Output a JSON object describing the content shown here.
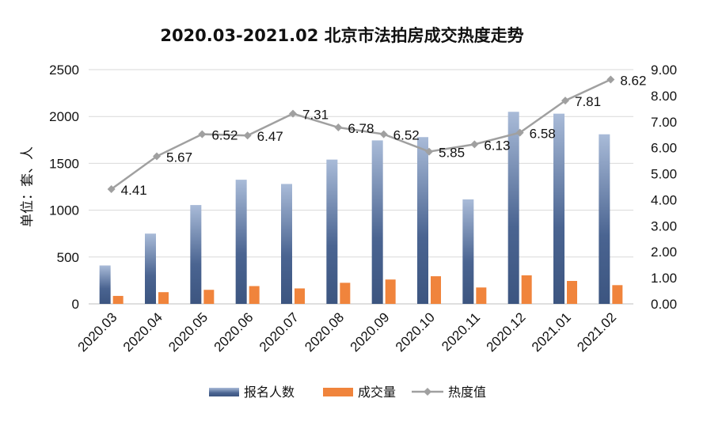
{
  "chart_data": {
    "type": "bar",
    "title": "2020.03-2021.02 北京市法拍房成交热度走势",
    "ylabel": "单位：套、人",
    "categories": [
      "2020.03",
      "2020.04",
      "2020.05",
      "2020.06",
      "2020.07",
      "2020.08",
      "2020.09",
      "2020.10",
      "2020.11",
      "2020.12",
      "2021.01",
      "2021.02"
    ],
    "series": [
      {
        "name": "报名人数",
        "kind": "bar",
        "axis": "left",
        "color": "#4a6491",
        "values": [
          410,
          750,
          1055,
          1325,
          1280,
          1540,
          1745,
          1780,
          1115,
          2050,
          2030,
          1810
        ]
      },
      {
        "name": "成交量",
        "kind": "bar",
        "axis": "left",
        "color": "#f0843c",
        "values": [
          85,
          125,
          150,
          190,
          165,
          225,
          260,
          295,
          175,
          305,
          245,
          200
        ]
      },
      {
        "name": "热度值",
        "kind": "line",
        "axis": "right",
        "color": "#a0a0a0",
        "values": [
          4.41,
          5.67,
          6.52,
          6.47,
          7.31,
          6.78,
          6.52,
          5.85,
          6.13,
          6.58,
          7.81,
          8.62
        ],
        "labels": [
          "4.41",
          "5.67",
          "6.52",
          "6.47",
          "7.31",
          "6.78",
          "6.52",
          "5.85",
          "6.13",
          "6.58",
          "7.81",
          "8.62"
        ]
      }
    ],
    "ylim_left": [
      0,
      2500
    ],
    "yticks_left": [
      "0",
      "500",
      "1000",
      "1500",
      "2000",
      "2500"
    ],
    "ylim_right": [
      0,
      9
    ],
    "yticks_right": [
      "0.00",
      "1.00",
      "2.00",
      "3.00",
      "4.00",
      "5.00",
      "6.00",
      "7.00",
      "8.00",
      "9.00"
    ],
    "grid": "horizontal",
    "legend": "bottom-center"
  }
}
